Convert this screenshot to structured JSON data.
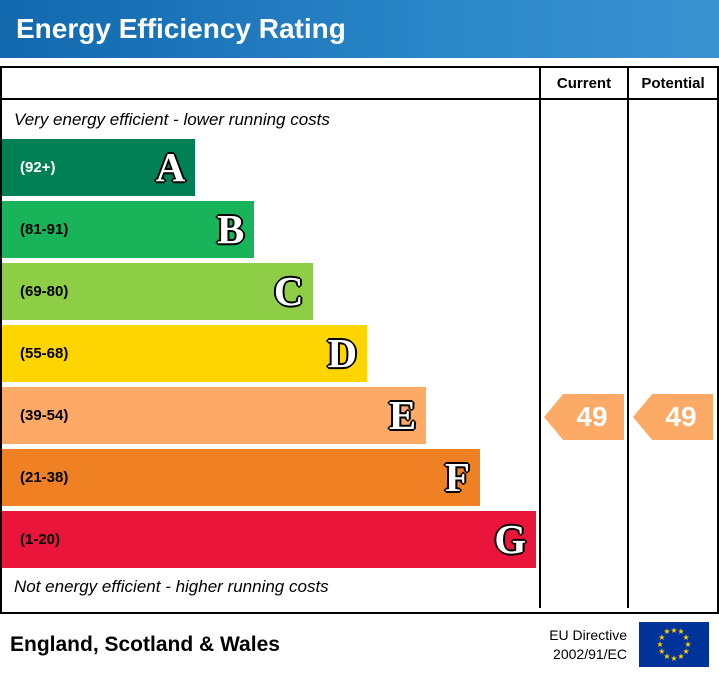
{
  "header": {
    "title": "Energy Efficiency Rating"
  },
  "table": {
    "current_label": "Current",
    "potential_label": "Potential"
  },
  "notes": {
    "top": "Very energy efficient - lower running costs",
    "bottom": "Not energy efficient - higher running costs"
  },
  "bands": [
    {
      "letter": "A",
      "range": "(92+)",
      "color": "#008054",
      "text_color": "#ffffff",
      "width_pct": 36
    },
    {
      "letter": "B",
      "range": "(81-91)",
      "color": "#19b459",
      "text_color": "#000000",
      "width_pct": 47
    },
    {
      "letter": "C",
      "range": "(69-80)",
      "color": "#8dce46",
      "text_color": "#000000",
      "width_pct": 58
    },
    {
      "letter": "D",
      "range": "(55-68)",
      "color": "#ffd500",
      "text_color": "#000000",
      "width_pct": 68
    },
    {
      "letter": "E",
      "range": "(39-54)",
      "color": "#fcaa65",
      "text_color": "#000000",
      "width_pct": 79
    },
    {
      "letter": "F",
      "range": "(21-38)",
      "color": "#ef8023",
      "text_color": "#000000",
      "width_pct": 89
    },
    {
      "letter": "G",
      "range": "(1-20)",
      "color": "#e9153b",
      "text_color": "#000000",
      "width_pct": 99.5
    }
  ],
  "ratings": {
    "current": "49",
    "potential": "49"
  },
  "chart_data": {
    "type": "bar",
    "title": "Energy Efficiency Rating",
    "categories": [
      "A",
      "B",
      "C",
      "D",
      "E",
      "F",
      "G"
    ],
    "tick_labels": [
      "(92+)",
      "(81-91)",
      "(69-80)",
      "(55-68)",
      "(39-54)",
      "(21-38)",
      "(1-20)"
    ],
    "values": [
      36,
      47,
      58,
      68,
      79,
      89,
      99.5
    ],
    "series": [
      {
        "name": "Current",
        "values": [
          49
        ]
      },
      {
        "name": "Potential",
        "values": [
          49
        ]
      }
    ],
    "current": 49,
    "potential": 49,
    "current_band": "E",
    "potential_band": "E",
    "arrow_color": "#fcaa65",
    "band_colors": [
      "#008054",
      "#19b459",
      "#8dce46",
      "#ffd500",
      "#fcaa65",
      "#ef8023",
      "#e9153b"
    ],
    "legend_position": "none",
    "grid": false
  },
  "footer": {
    "region": "England, Scotland & Wales",
    "directive": [
      "EU Directive",
      "2002/91/EC"
    ]
  },
  "flag": {
    "bg": "#003399",
    "star_color": "#ffcc00"
  }
}
